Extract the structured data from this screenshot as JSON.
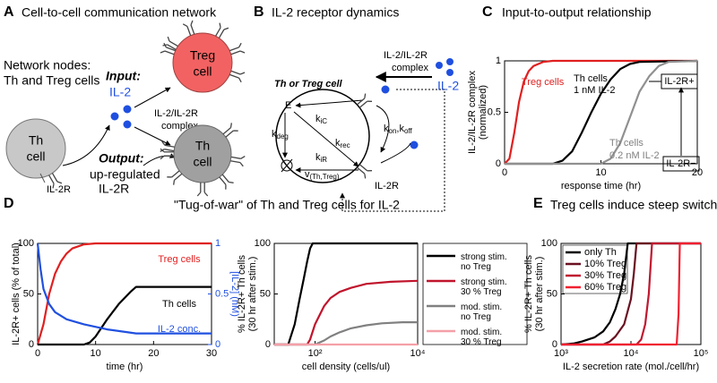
{
  "panels": {
    "A": {
      "letter": "A",
      "title": "Cell-to-cell communication network",
      "nodes_label": [
        "Network nodes:",
        "Th and Treg cells"
      ],
      "input": "Input:",
      "input_name": "IL-2",
      "output": "Output:",
      "output_lines": [
        "up-regulated",
        "IL-2R"
      ],
      "th_cell": [
        "Th",
        "cell"
      ],
      "treg_cell": [
        "Treg",
        "cell"
      ],
      "complex": [
        "IL-2/IL-2R",
        "complex"
      ],
      "receptor": "IL-2R"
    },
    "B": {
      "letter": "B",
      "title": "IL-2 receptor dynamics",
      "complex": [
        "IL-2/IL-2R",
        "complex"
      ],
      "ligand": "IL-2",
      "cell": "Th or Treg cell",
      "endosome": "E",
      "k_ic": [
        "k",
        "iC"
      ],
      "k_rec": [
        "k",
        "rec"
      ],
      "k_deg": [
        "k",
        "deg"
      ],
      "k_ir": [
        "k",
        "iR"
      ],
      "synthesis": [
        "v",
        "(Th,Treg)"
      ],
      "binding": [
        "k",
        "on",
        ",k",
        "off"
      ],
      "receptor": "IL-2R"
    },
    "C": {
      "letter": "C"
    },
    "D": {
      "letter": "D",
      "title": "\"Tug-of-war\" of Th and Treg cells for IL-2"
    },
    "E": {
      "letter": "E"
    }
  },
  "chart_data": [
    {
      "type": "line",
      "title": "Input-to-output relationship",
      "x_label": "response time (hr)",
      "y_label": [
        "IL-2/IL-2R complex",
        "(normalized)"
      ],
      "xlim": [
        0,
        20
      ],
      "xticks": [
        0,
        10,
        20
      ],
      "ylim": [
        0,
        1
      ],
      "yticks": [
        0,
        0.5,
        1
      ],
      "series": [
        {
          "color": "#e02020",
          "x": [
            0,
            0.5,
            1,
            1.5,
            2,
            2.5,
            3,
            4,
            5,
            20
          ],
          "values": [
            0,
            0.05,
            0.3,
            0.6,
            0.8,
            0.9,
            0.95,
            0.99,
            1,
            1
          ]
        },
        {
          "color": "#000000",
          "x": [
            0,
            5,
            6,
            7,
            8,
            9,
            10,
            11,
            12,
            13,
            14,
            20
          ],
          "values": [
            0,
            0,
            0.03,
            0.12,
            0.3,
            0.5,
            0.68,
            0.82,
            0.92,
            0.97,
            0.99,
            1
          ]
        },
        {
          "color": "#909090",
          "x": [
            0,
            10,
            11,
            12,
            13,
            14,
            15,
            16,
            17,
            20
          ],
          "values": [
            0,
            0,
            0.05,
            0.2,
            0.45,
            0.7,
            0.85,
            0.95,
            0.99,
            1
          ]
        }
      ],
      "annotations": [
        {
          "text": "Treg cells",
          "color": "#e02020"
        },
        {
          "text": "Th cells",
          "color": "#000000"
        },
        {
          "text": "1 nM IL-2",
          "color": "#000000"
        },
        {
          "text": "Th cells",
          "color": "#808080"
        },
        {
          "text": "0.2 nM IL-2",
          "color": "#808080"
        },
        {
          "text": "IL-2R+",
          "color": "#000000"
        },
        {
          "text": "IL-2R−",
          "color": "#000000"
        }
      ]
    },
    {
      "type": "line",
      "x_label": "time (hr)",
      "y_label": [
        "IL-2R+ cells (% of total)"
      ],
      "y2_label": "[IL-2] (nM)",
      "y2_color": "#2050e0",
      "xlim": [
        0,
        30
      ],
      "xticks": [
        0,
        10,
        20,
        30
      ],
      "ylim": [
        0,
        100
      ],
      "yticks": [
        0,
        50,
        100
      ],
      "y2lim": [
        0,
        1
      ],
      "y2ticks": [
        0,
        0.5,
        1
      ],
      "series": [
        {
          "name": "Treg cells",
          "color": "#e02020",
          "x": [
            0,
            1,
            2,
            3,
            4,
            5,
            6,
            8,
            10,
            30
          ],
          "values": [
            0,
            20,
            50,
            70,
            82,
            90,
            95,
            99,
            100,
            100
          ]
        },
        {
          "name": "Th cells",
          "color": "#000000",
          "x": [
            0,
            8,
            9,
            10,
            12,
            14,
            16,
            17,
            30
          ],
          "values": [
            0,
            0,
            2,
            8,
            25,
            40,
            52,
            57,
            57
          ]
        },
        {
          "name": "IL-2 conc.",
          "color": "#2050e0",
          "axis": "y2",
          "x": [
            0,
            0.5,
            1,
            2,
            3,
            5,
            8,
            12,
            17,
            30
          ],
          "values": [
            1,
            0.75,
            0.55,
            0.4,
            0.32,
            0.25,
            0.2,
            0.15,
            0.11,
            0.11
          ]
        }
      ]
    },
    {
      "type": "line",
      "x_label": "cell density (cells/ul)",
      "y_label": [
        "% IL-2R+ Th cells",
        "(30 hr after stim.)"
      ],
      "log_x": true,
      "legend": "outside right",
      "xlim": [
        16,
        10000
      ],
      "xticks": [
        {
          "value": 100,
          "label": "10²"
        },
        {
          "value": 10000,
          "label": "10⁴"
        }
      ],
      "ylim": [
        0,
        100
      ],
      "yticks": [
        0,
        50,
        100
      ],
      "series": [
        {
          "name": "strong stim.\nno Treg",
          "color": "#000000",
          "x": [
            16,
            30,
            40,
            50,
            60,
            70,
            80,
            90,
            10000
          ],
          "values": [
            0,
            0,
            20,
            45,
            65,
            82,
            95,
            100,
            100
          ]
        },
        {
          "name": "strong stim.\n30 % Treg",
          "color": "#c0142c",
          "x": [
            16,
            70,
            80,
            100,
            150,
            200,
            300,
            500,
            1000,
            3000,
            10000
          ],
          "values": [
            0,
            0,
            5,
            20,
            38,
            46,
            52,
            56,
            60,
            62,
            63
          ]
        },
        {
          "name": "mod. stim.\nno Treg",
          "color": "#808080",
          "x": [
            16,
            100,
            150,
            200,
            300,
            500,
            1000,
            2000,
            5000,
            10000
          ],
          "values": [
            0,
            0,
            4,
            8,
            12,
            16,
            19,
            21,
            22,
            22
          ]
        },
        {
          "name": "mod. stim.\n30 % Treg",
          "color": "#f4a0a8",
          "x": [
            16,
            10000
          ],
          "values": [
            0,
            0
          ]
        }
      ]
    },
    {
      "type": "line",
      "title": "Treg cells induce steep switching",
      "x_label": "IL-2 secretion rate (mol./cell/hr)",
      "y_label": [
        "% IL-2R+ Th cells",
        "(30 hr after stim.)"
      ],
      "log_x": true,
      "legend": "upper left",
      "xlim": [
        1000,
        100000
      ],
      "xticks": [
        {
          "value": 1000,
          "label": "10³"
        },
        {
          "value": 10000,
          "label": "10⁴"
        },
        {
          "value": 100000,
          "label": "10⁵"
        }
      ],
      "ylim": [
        0,
        100
      ],
      "yticks": [
        0,
        50,
        100
      ],
      "series": [
        {
          "name": "only Th",
          "color": "#000000",
          "x": [
            1000,
            1500,
            2000,
            3000,
            4000,
            5000,
            6000,
            7000,
            8000,
            9000,
            100000
          ],
          "values": [
            0,
            1,
            3,
            7,
            13,
            22,
            35,
            50,
            70,
            100,
            100
          ]
        },
        {
          "name": "10% Treg",
          "color": "#6a1020",
          "x": [
            1000,
            4000,
            5000,
            6000,
            8000,
            10000,
            11000,
            12000,
            100000
          ],
          "values": [
            0,
            0,
            3,
            8,
            20,
            45,
            70,
            100,
            100
          ]
        },
        {
          "name": "30% Treg",
          "color": "#c01830",
          "x": [
            1000,
            12000,
            14000,
            16000,
            18000,
            20000,
            100000
          ],
          "values": [
            0,
            0,
            5,
            20,
            50,
            100,
            100
          ]
        },
        {
          "name": "60% Treg",
          "color": "#f02030",
          "x": [
            1000,
            45000,
            48000,
            50000,
            100000
          ],
          "values": [
            0,
            0,
            30,
            100,
            100
          ]
        }
      ]
    }
  ]
}
